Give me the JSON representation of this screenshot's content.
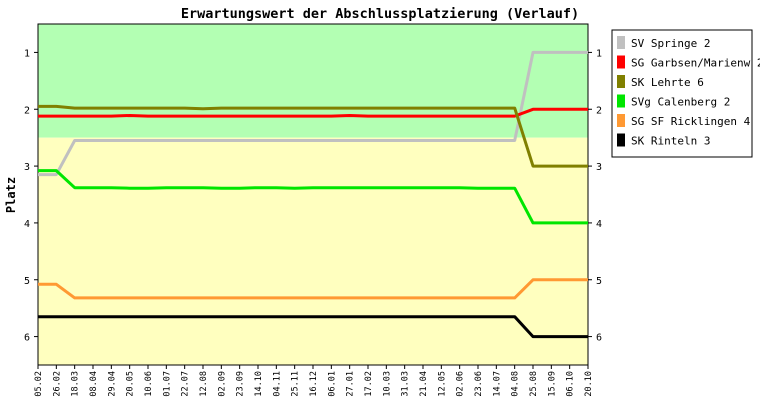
{
  "chart_data": {
    "type": "line",
    "title": "Erwartungswert der Abschlussplatzierung (Verlauf)",
    "xlabel": "",
    "ylabel": "Platz",
    "ylim": [
      0.5,
      6.5
    ],
    "y_inverted": true,
    "y_ticks": [
      "1",
      "2",
      "3",
      "4",
      "5",
      "6"
    ],
    "bands": [
      {
        "from": 0.5,
        "to": 2.5,
        "color": "#b3ffb3"
      },
      {
        "from": 2.5,
        "to": 6.5,
        "color": "#ffffbf"
      }
    ],
    "legend_position": "right",
    "categories": [
      "05.02",
      "26.02",
      "18.03",
      "08.04",
      "29.04",
      "20.05",
      "10.06",
      "01.07",
      "22.07",
      "12.08",
      "02.09",
      "23.09",
      "14.10",
      "04.11",
      "25.11",
      "16.12",
      "06.01",
      "27.01",
      "17.02",
      "10.03",
      "31.03",
      "21.04",
      "12.05",
      "02.06",
      "23.06",
      "14.07",
      "04.08",
      "25.08",
      "15.09",
      "06.10",
      "20.10"
    ],
    "series": [
      {
        "name": "SV Springe 2",
        "color": "#c0c0c0",
        "values": [
          3.15,
          3.15,
          2.55,
          2.55,
          2.55,
          2.55,
          2.55,
          2.55,
          2.55,
          2.55,
          2.55,
          2.55,
          2.55,
          2.55,
          2.55,
          2.55,
          2.55,
          2.55,
          2.55,
          2.55,
          2.55,
          2.55,
          2.55,
          2.55,
          2.55,
          2.55,
          2.55,
          1.0,
          1.0,
          1.0,
          1.0
        ]
      },
      {
        "name": "SG Garbsen/Marienw 2",
        "color": "#ff0000",
        "values": [
          2.12,
          2.12,
          2.12,
          2.12,
          2.12,
          2.11,
          2.12,
          2.12,
          2.12,
          2.12,
          2.12,
          2.12,
          2.12,
          2.12,
          2.12,
          2.12,
          2.12,
          2.11,
          2.12,
          2.12,
          2.12,
          2.12,
          2.12,
          2.12,
          2.12,
          2.12,
          2.12,
          2.0,
          2.0,
          2.0,
          2.0
        ]
      },
      {
        "name": "SK Lehrte 6",
        "color": "#808000",
        "values": [
          1.95,
          1.95,
          1.98,
          1.98,
          1.98,
          1.98,
          1.98,
          1.98,
          1.98,
          1.99,
          1.98,
          1.98,
          1.98,
          1.98,
          1.98,
          1.98,
          1.98,
          1.98,
          1.98,
          1.98,
          1.98,
          1.98,
          1.98,
          1.98,
          1.98,
          1.98,
          1.98,
          3.0,
          3.0,
          3.0,
          3.0
        ]
      },
      {
        "name": "SVg Calenberg 2",
        "color": "#00e600",
        "values": [
          3.08,
          3.08,
          3.38,
          3.38,
          3.38,
          3.39,
          3.39,
          3.38,
          3.38,
          3.38,
          3.39,
          3.39,
          3.38,
          3.38,
          3.39,
          3.38,
          3.38,
          3.38,
          3.38,
          3.38,
          3.38,
          3.38,
          3.38,
          3.38,
          3.39,
          3.39,
          3.39,
          4.0,
          4.0,
          4.0,
          4.0
        ]
      },
      {
        "name": "SG SF Ricklingen 4",
        "color": "#ff9933",
        "values": [
          5.08,
          5.08,
          5.32,
          5.32,
          5.32,
          5.32,
          5.32,
          5.32,
          5.32,
          5.32,
          5.32,
          5.32,
          5.32,
          5.32,
          5.32,
          5.32,
          5.32,
          5.32,
          5.32,
          5.32,
          5.32,
          5.32,
          5.32,
          5.32,
          5.32,
          5.32,
          5.32,
          5.0,
          5.0,
          5.0,
          5.0
        ]
      },
      {
        "name": "SK Rinteln 3",
        "color": "#000000",
        "values": [
          5.65,
          5.65,
          5.65,
          5.65,
          5.65,
          5.65,
          5.65,
          5.65,
          5.65,
          5.65,
          5.65,
          5.65,
          5.65,
          5.65,
          5.65,
          5.65,
          5.65,
          5.65,
          5.65,
          5.65,
          5.65,
          5.65,
          5.65,
          5.65,
          5.65,
          5.65,
          5.65,
          6.0,
          6.0,
          6.0,
          6.0
        ]
      }
    ]
  }
}
